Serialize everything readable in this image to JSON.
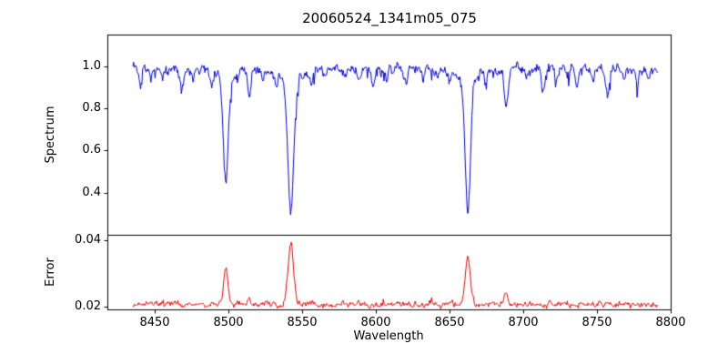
{
  "title": "20060524_1341m05_075",
  "xlabel": "Wavelength",
  "xlim": [
    8418,
    8800
  ],
  "x_data_range": [
    8435,
    8791
  ],
  "xticks": [
    {
      "v": 8450,
      "label": "8450"
    },
    {
      "v": 8500,
      "label": "8500"
    },
    {
      "v": 8550,
      "label": "8550"
    },
    {
      "v": 8600,
      "label": "8600"
    },
    {
      "v": 8650,
      "label": "8650"
    },
    {
      "v": 8700,
      "label": "8700"
    },
    {
      "v": 8750,
      "label": "8750"
    },
    {
      "v": 8800,
      "label": "8800"
    }
  ],
  "chart_data": [
    {
      "type": "line",
      "name": "spectrum",
      "ylabel": "Spectrum",
      "color": "#0000dd",
      "ylim": [
        0.2,
        1.15
      ],
      "yticks": [
        {
          "v": 1.0,
          "label": "1.0"
        },
        {
          "v": 0.8,
          "label": "0.8"
        },
        {
          "v": 0.6,
          "label": "0.6"
        },
        {
          "v": 0.4,
          "label": "0.4"
        }
      ],
      "continuum": 0.99,
      "noise_amplitude": 0.012,
      "absorption_lines": [
        {
          "center": 8432,
          "depth": 0.1,
          "width": 1.2
        },
        {
          "center": 8440,
          "depth": 0.07,
          "width": 1.0
        },
        {
          "center": 8447,
          "depth": 0.05,
          "width": 0.9
        },
        {
          "center": 8455,
          "depth": 0.04,
          "width": 0.9
        },
        {
          "center": 8468,
          "depth": 0.1,
          "width": 1.1
        },
        {
          "center": 8476,
          "depth": 0.05,
          "width": 0.9
        },
        {
          "center": 8488,
          "depth": 0.05,
          "width": 0.9
        },
        {
          "center": 8498.0,
          "depth": 0.5,
          "width": 1.6,
          "wing": 0.05
        },
        {
          "center": 8514,
          "depth": 0.12,
          "width": 1.2
        },
        {
          "center": 8523,
          "depth": 0.06,
          "width": 0.9
        },
        {
          "center": 8532,
          "depth": 0.05,
          "width": 0.9
        },
        {
          "center": 8542.1,
          "depth": 0.62,
          "width": 2.0,
          "wing": 0.06
        },
        {
          "center": 8556,
          "depth": 0.05,
          "width": 0.9
        },
        {
          "center": 8566,
          "depth": 0.04,
          "width": 0.9
        },
        {
          "center": 8578,
          "depth": 0.05,
          "width": 0.9
        },
        {
          "center": 8588,
          "depth": 0.05,
          "width": 0.9
        },
        {
          "center": 8598,
          "depth": 0.09,
          "width": 1.1
        },
        {
          "center": 8607,
          "depth": 0.04,
          "width": 0.9
        },
        {
          "center": 8620,
          "depth": 0.08,
          "width": 1.1
        },
        {
          "center": 8632,
          "depth": 0.05,
          "width": 0.9
        },
        {
          "center": 8642,
          "depth": 0.04,
          "width": 0.9
        },
        {
          "center": 8650,
          "depth": 0.05,
          "width": 0.9
        },
        {
          "center": 8662.1,
          "depth": 0.62,
          "width": 1.8,
          "wing": 0.05
        },
        {
          "center": 8674,
          "depth": 0.06,
          "width": 0.9
        },
        {
          "center": 8688,
          "depth": 0.19,
          "width": 1.3
        },
        {
          "center": 8702,
          "depth": 0.04,
          "width": 0.9
        },
        {
          "center": 8713,
          "depth": 0.08,
          "width": 1.1
        },
        {
          "center": 8722,
          "depth": 0.05,
          "width": 0.9
        },
        {
          "center": 8730,
          "depth": 0.04,
          "width": 0.9
        },
        {
          "center": 8736,
          "depth": 0.09,
          "width": 1.1
        },
        {
          "center": 8747,
          "depth": 0.06,
          "width": 0.9
        },
        {
          "center": 8757,
          "depth": 0.11,
          "width": 1.2
        },
        {
          "center": 8768,
          "depth": 0.06,
          "width": 0.9
        },
        {
          "center": 8777,
          "depth": 0.08,
          "width": 1.0
        },
        {
          "center": 8785,
          "depth": 0.05,
          "width": 0.9
        }
      ]
    },
    {
      "type": "line",
      "name": "error",
      "ylabel": "Error",
      "color": "#ee0000",
      "ylim": [
        0.0192,
        0.0416
      ],
      "yticks": [
        {
          "v": 0.04,
          "label": "0.04"
        },
        {
          "v": 0.02,
          "label": "0.02"
        }
      ],
      "baseline": 0.0208,
      "noise_amplitude": 0.0004,
      "peaks": [
        {
          "center": 8498.0,
          "amp": 0.0105,
          "width": 1.5
        },
        {
          "center": 8514,
          "amp": 0.0015,
          "width": 1.0
        },
        {
          "center": 8542.1,
          "amp": 0.0188,
          "width": 1.9
        },
        {
          "center": 8662.1,
          "amp": 0.0138,
          "width": 1.7
        },
        {
          "center": 8688,
          "amp": 0.0035,
          "width": 1.2
        },
        {
          "center": 8757,
          "amp": 0.0012,
          "width": 1.0
        }
      ]
    }
  ]
}
